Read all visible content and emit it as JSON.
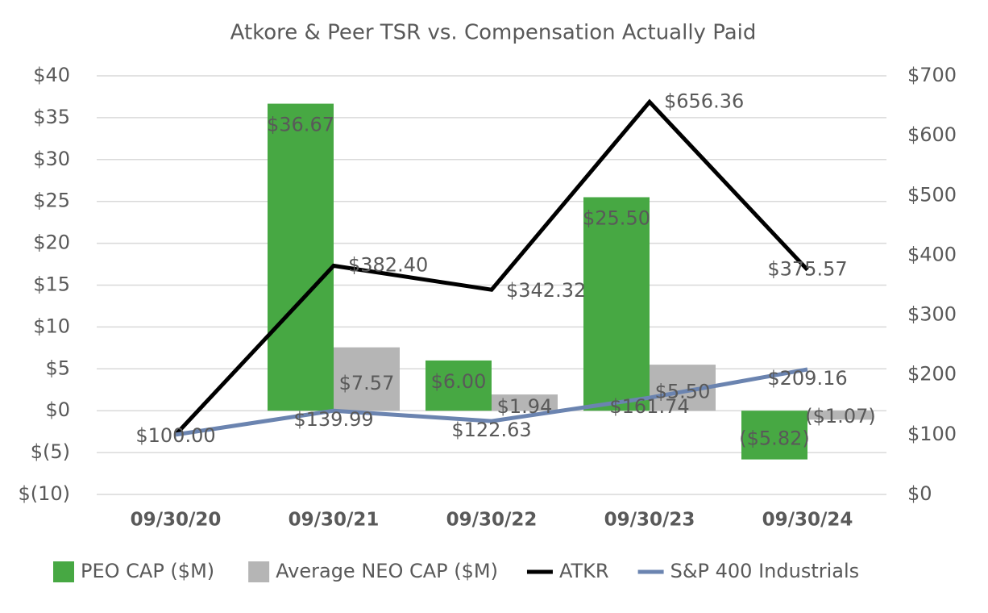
{
  "chart_data": {
    "type": "bar-line",
    "title": "Atkore & Peer TSR vs. Compensation Actually Paid",
    "categories": [
      "09/30/20",
      "09/30/21",
      "09/30/22",
      "09/30/23",
      "09/30/24"
    ],
    "series": [
      {
        "name": "PEO CAP ($M)",
        "type": "bar",
        "color": "#47a843",
        "values": [
          null,
          36.67,
          6.0,
          25.5,
          -5.82
        ],
        "value_labels": [
          null,
          "$36.67",
          "$6.00",
          "$25.50",
          "($5.82)"
        ]
      },
      {
        "name": "Average NEO CAP ($M)",
        "type": "bar",
        "color": "#b5b5b5",
        "values": [
          null,
          7.57,
          1.94,
          5.5,
          -1.07
        ],
        "value_labels": [
          null,
          "$7.57",
          "$1.94",
          "$5.50",
          "($1.07)"
        ]
      },
      {
        "name": "ATKR",
        "type": "line",
        "axis": "y2",
        "color": "#000000",
        "values": [
          100.0,
          382.4,
          342.32,
          656.36,
          375.57
        ],
        "value_labels": [
          "$100.00",
          "$382.40",
          "$342.32",
          "$656.36",
          "$375.57"
        ]
      },
      {
        "name": "S&P 400 Industrials",
        "type": "line",
        "axis": "y2",
        "color": "#6b84b0",
        "values": [
          100.0,
          139.99,
          122.63,
          161.74,
          209.16
        ],
        "value_labels": [
          null,
          "$139.99",
          "$122.63",
          "$161.74",
          "$209.16"
        ]
      }
    ],
    "ylim": [
      -10,
      40
    ],
    "yticks": [
      {
        "value": -10,
        "label": "$(10)"
      },
      {
        "value": -5,
        "label": "$(5)"
      },
      {
        "value": 0,
        "label": "$0"
      },
      {
        "value": 5,
        "label": "$5"
      },
      {
        "value": 10,
        "label": "$10"
      },
      {
        "value": 15,
        "label": "$15"
      },
      {
        "value": 20,
        "label": "$20"
      },
      {
        "value": 25,
        "label": "$25"
      },
      {
        "value": 30,
        "label": "$30"
      },
      {
        "value": 35,
        "label": "$35"
      },
      {
        "value": 40,
        "label": "$40"
      }
    ],
    "y2lim": [
      0,
      700
    ],
    "y2ticks": [
      {
        "value": 0,
        "label": "$0"
      },
      {
        "value": 100,
        "label": "$100"
      },
      {
        "value": 200,
        "label": "$200"
      },
      {
        "value": 300,
        "label": "$300"
      },
      {
        "value": 400,
        "label": "$400"
      },
      {
        "value": 500,
        "label": "$500"
      },
      {
        "value": 600,
        "label": "$600"
      },
      {
        "value": 700,
        "label": "$700"
      }
    ],
    "grid": true,
    "legend": "bottom"
  }
}
